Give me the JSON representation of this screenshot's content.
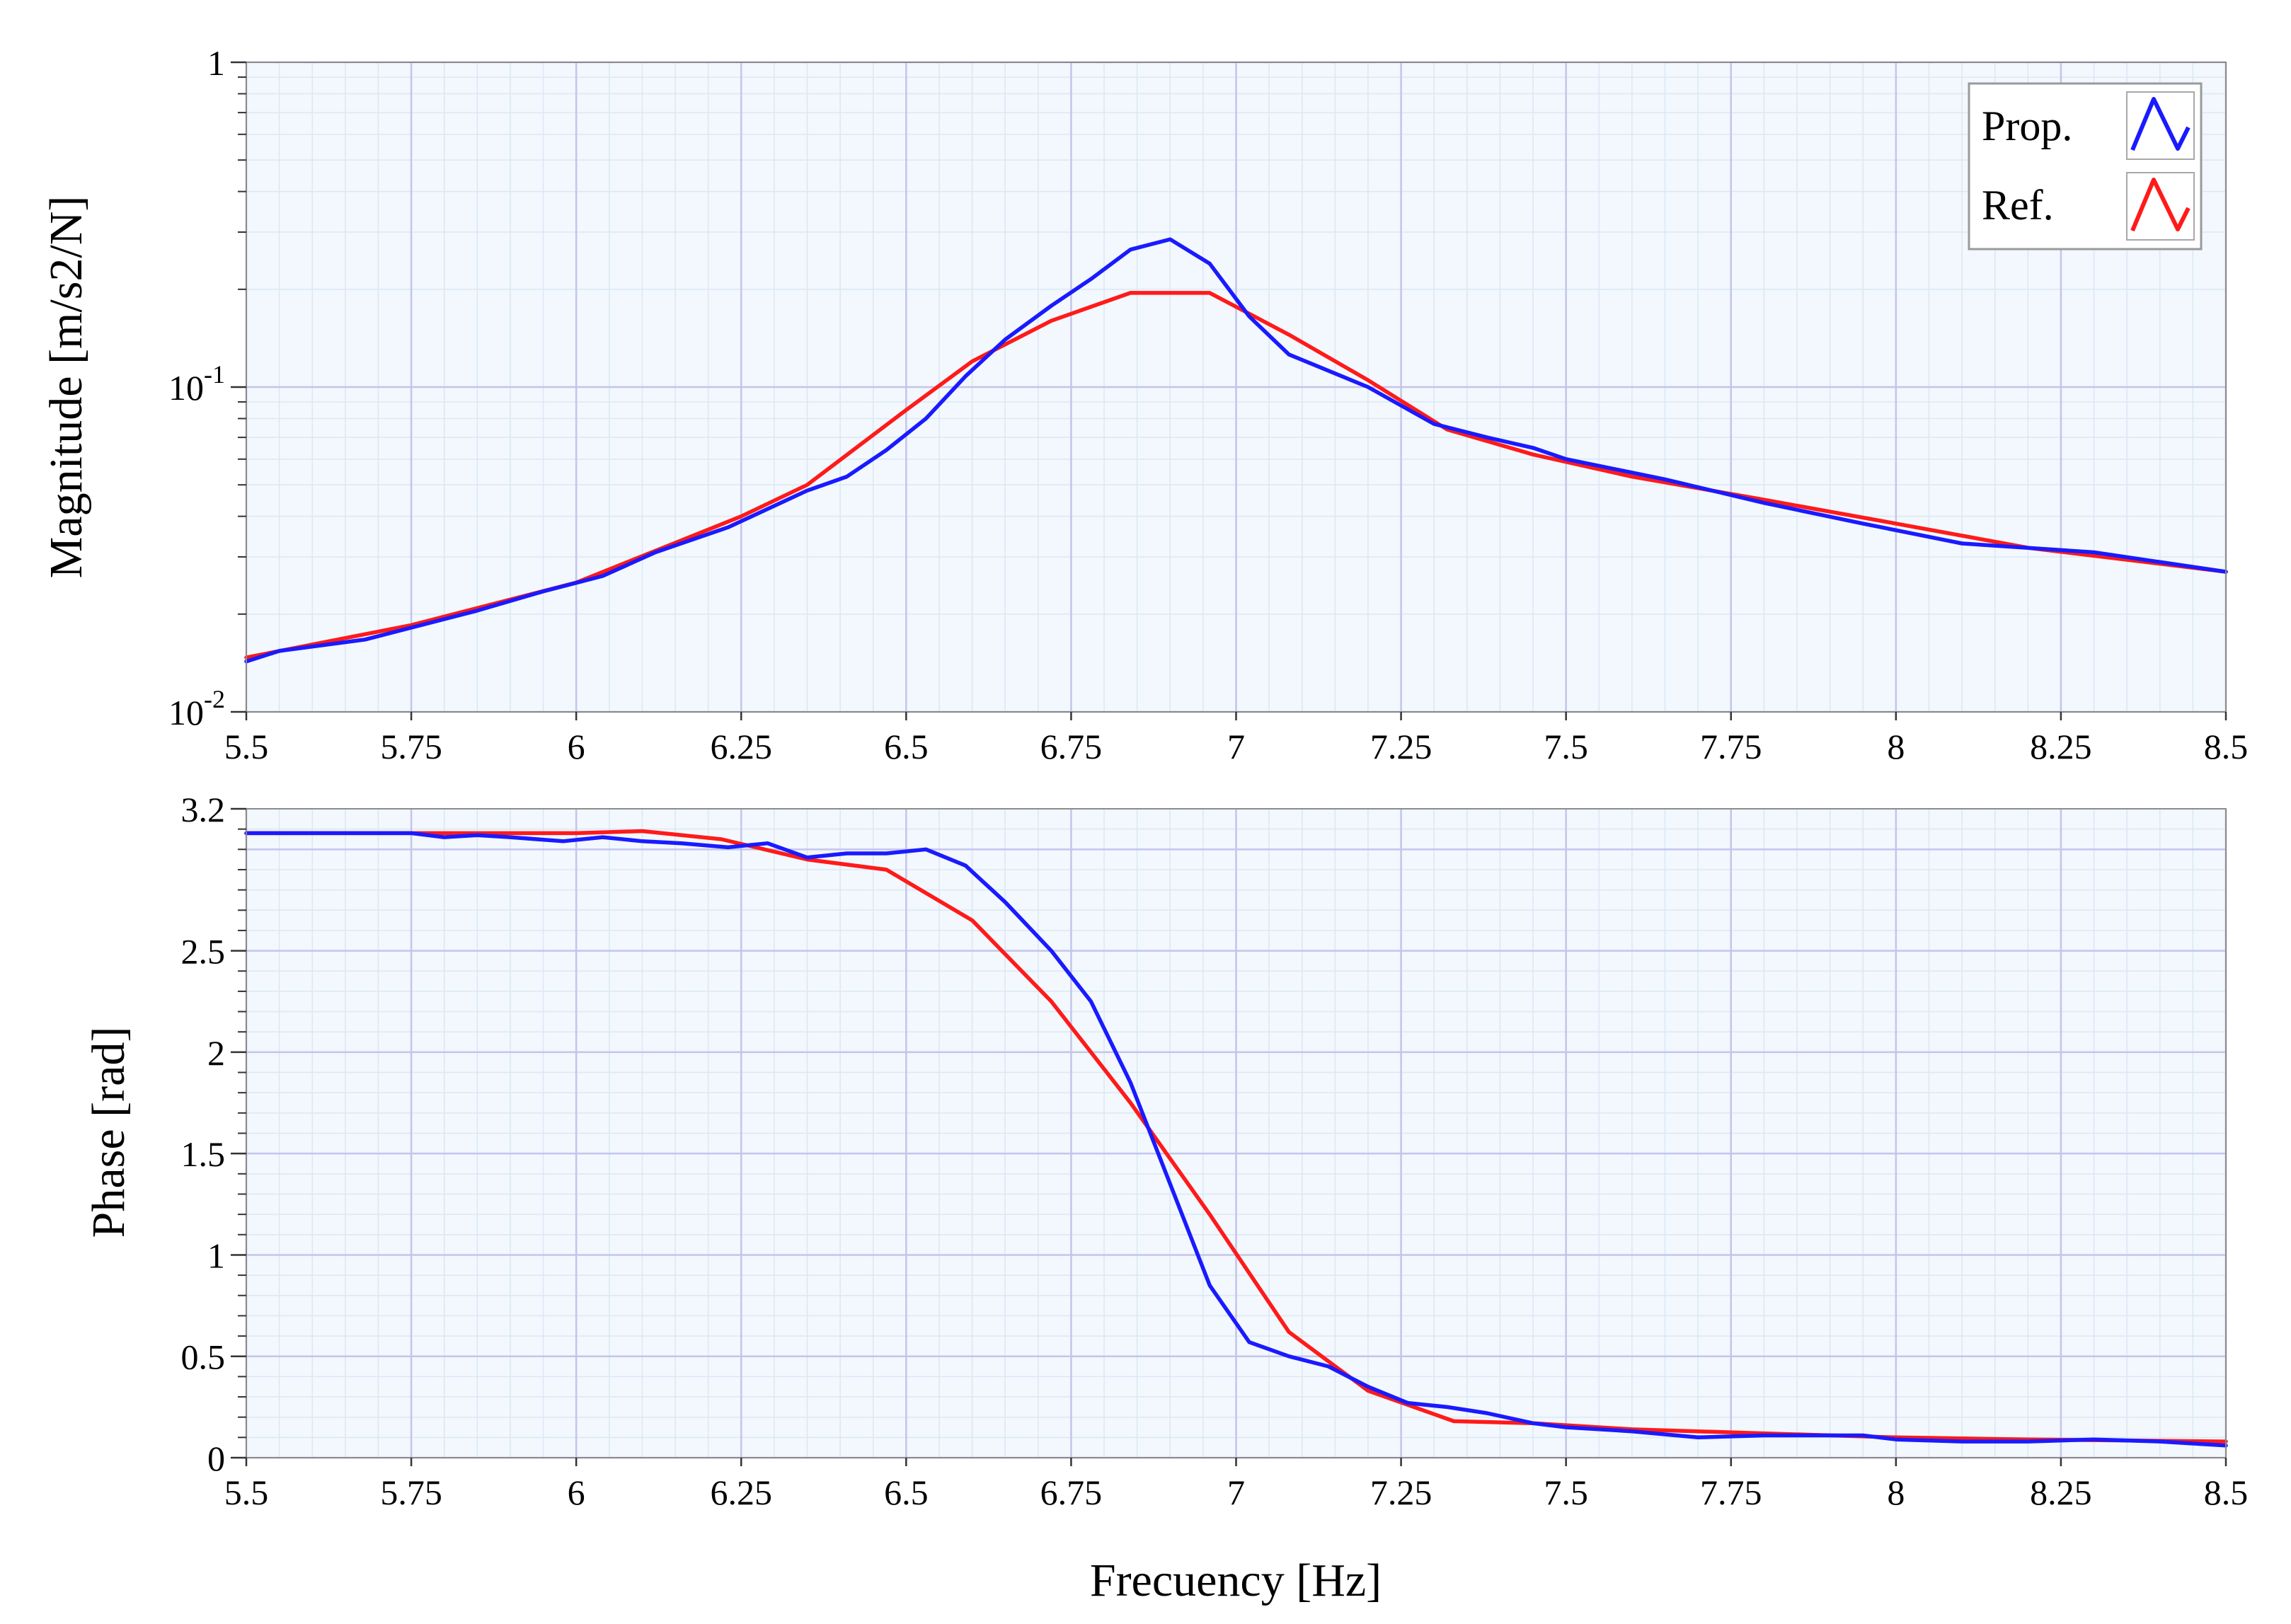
{
  "colors": {
    "prop": "#1a1aff",
    "ref": "#ff1a1a",
    "plot_bg": "#f2f8fd",
    "grid_major": "#c4c4ec",
    "grid_minor": "#dbe7f5"
  },
  "legend": {
    "prop": "Prop.",
    "ref": "Ref.",
    "placement": "top-right"
  },
  "chart_data": [
    {
      "type": "line",
      "xlabel": "",
      "ylabel": "Magnitude [m/s2/N]",
      "xlim": [
        5.5,
        8.5
      ],
      "ylim": [
        0.01,
        1
      ],
      "yscale": "log",
      "grid": true,
      "xticks": [
        "5.5",
        "5.75",
        "6",
        "6.25",
        "6.5",
        "6.75",
        "7",
        "7.25",
        "7.5",
        "7.75",
        "8",
        "8.25",
        "8.5"
      ],
      "yticks": [
        {
          "base": "10",
          "exp": "-2",
          "value": 0.01
        },
        {
          "base": "10",
          "exp": "-1",
          "value": 0.1
        },
        {
          "base": "1",
          "exp": "",
          "value": 1
        }
      ],
      "series": [
        {
          "name": "Prop.",
          "color": "#1a1aff",
          "x": [
            5.5,
            5.55,
            5.68,
            5.85,
            5.95,
            6.04,
            6.12,
            6.23,
            6.35,
            6.41,
            6.47,
            6.53,
            6.59,
            6.65,
            6.72,
            6.78,
            6.84,
            6.9,
            6.96,
            7.02,
            7.08,
            7.2,
            7.3,
            7.38,
            7.45,
            7.5,
            7.65,
            7.8,
            7.95,
            8.1,
            8.3,
            8.5
          ],
          "y": [
            0.0143,
            0.0154,
            0.0167,
            0.0205,
            0.0235,
            0.0262,
            0.031,
            0.037,
            0.048,
            0.053,
            0.064,
            0.08,
            0.108,
            0.14,
            0.178,
            0.215,
            0.265,
            0.285,
            0.24,
            0.165,
            0.126,
            0.1,
            0.077,
            0.07,
            0.065,
            0.06,
            0.052,
            0.044,
            0.038,
            0.033,
            0.031,
            0.027
          ]
        },
        {
          "name": "Ref.",
          "color": "#ff1a1a",
          "x": [
            5.5,
            5.75,
            6.0,
            6.25,
            6.35,
            6.5,
            6.6,
            6.72,
            6.84,
            6.96,
            7.08,
            7.2,
            7.32,
            7.45,
            7.6,
            7.8,
            8.0,
            8.2,
            8.5
          ],
          "y": [
            0.0147,
            0.0185,
            0.025,
            0.04,
            0.05,
            0.085,
            0.12,
            0.16,
            0.195,
            0.195,
            0.145,
            0.105,
            0.074,
            0.062,
            0.053,
            0.045,
            0.038,
            0.032,
            0.027
          ]
        }
      ]
    },
    {
      "type": "line",
      "xlabel": "Frecuency [Hz]",
      "ylabel": "Phase [rad]",
      "xlim": [
        5.5,
        8.5
      ],
      "ylim": [
        0,
        3.2
      ],
      "grid": true,
      "xticks": [
        "5.5",
        "5.75",
        "6",
        "6.25",
        "6.5",
        "6.75",
        "7",
        "7.25",
        "7.5",
        "7.75",
        "8",
        "8.25",
        "8.5"
      ],
      "yticks": [
        "0",
        "0.5",
        "1",
        "1.5",
        "2",
        "2.5",
        "3.2"
      ],
      "series": [
        {
          "name": "Prop.",
          "color": "#1a1aff",
          "x": [
            5.5,
            5.75,
            5.8,
            5.85,
            5.9,
            5.98,
            6.04,
            6.1,
            6.16,
            6.23,
            6.29,
            6.35,
            6.41,
            6.47,
            6.53,
            6.59,
            6.65,
            6.72,
            6.78,
            6.84,
            6.9,
            6.96,
            7.02,
            7.08,
            7.14,
            7.2,
            7.26,
            7.32,
            7.38,
            7.45,
            7.5,
            7.6,
            7.7,
            7.8,
            7.95,
            8.0,
            8.1,
            8.2,
            8.3,
            8.4,
            8.5
          ],
          "y": [
            3.08,
            3.08,
            3.06,
            3.07,
            3.06,
            3.04,
            3.06,
            3.04,
            3.03,
            3.01,
            3.03,
            2.96,
            2.98,
            2.98,
            3.0,
            2.92,
            2.74,
            2.5,
            2.25,
            1.85,
            1.35,
            0.85,
            0.57,
            0.5,
            0.45,
            0.35,
            0.27,
            0.25,
            0.22,
            0.17,
            0.15,
            0.13,
            0.1,
            0.11,
            0.11,
            0.09,
            0.08,
            0.08,
            0.09,
            0.08,
            0.06
          ]
        },
        {
          "name": "Ref.",
          "color": "#ff1a1a",
          "x": [
            5.5,
            6.0,
            6.1,
            6.22,
            6.35,
            6.47,
            6.6,
            6.72,
            6.84,
            6.96,
            7.08,
            7.2,
            7.33,
            7.45,
            7.6,
            7.8,
            8.0,
            8.2,
            8.5
          ],
          "y": [
            3.08,
            3.08,
            3.09,
            3.05,
            2.95,
            2.9,
            2.65,
            2.25,
            1.75,
            1.2,
            0.62,
            0.33,
            0.18,
            0.17,
            0.14,
            0.12,
            0.1,
            0.09,
            0.08
          ]
        }
      ]
    }
  ]
}
